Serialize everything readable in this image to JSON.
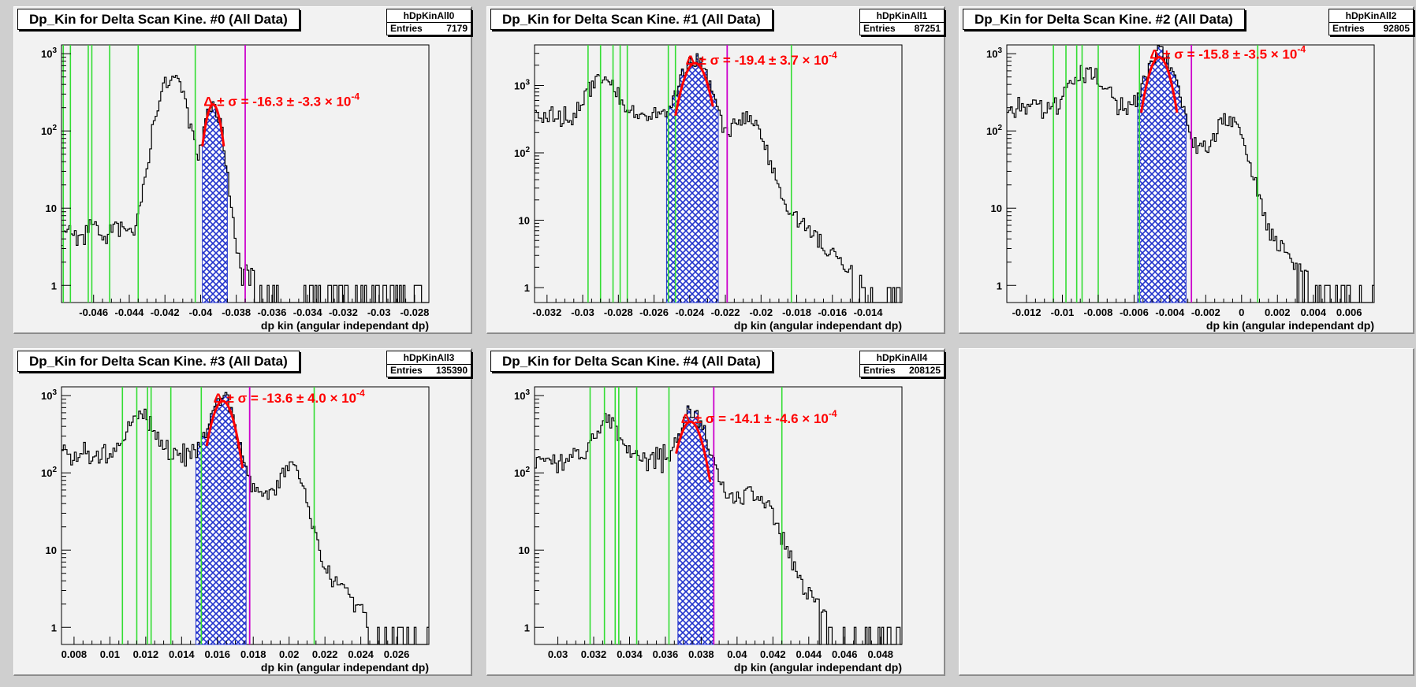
{
  "colors": {
    "background": "#cfcfcf",
    "pad": "#f2f2f2",
    "histogram_line": "#000000",
    "fill": "#2233cc",
    "fit": "#ff0000",
    "cut_lines": "#33dd33",
    "marker_line": "#cc00cc"
  },
  "chart_data": [
    {
      "type": "histogram",
      "title": "Dp_Kin for Delta Scan Kine. #0 (All Data)",
      "hist_name": "hDpKinAll0",
      "entries_label": "Entries",
      "entries": "7179",
      "xlabel": "dp kin (angular independant dp)",
      "ylabel": "",
      "yscale": "log",
      "xlim": [
        -0.0478,
        -0.0272
      ],
      "ylim": [
        0.6,
        1300
      ],
      "xticks": [
        -0.046,
        -0.044,
        -0.042,
        -0.04,
        -0.038,
        -0.036,
        -0.034,
        -0.032,
        -0.03,
        -0.028
      ],
      "xtick_labels": [
        "-0.046",
        "-0.044",
        "-0.042",
        "-0.04",
        "-0.038",
        "-0.036",
        "-0.034",
        "-0.032",
        "-0.03",
        "-0.028"
      ],
      "yticks": [
        1,
        10,
        100,
        1000
      ],
      "ytick_labels": [
        "1",
        "10",
        "10²",
        "10³"
      ],
      "peaks": [
        {
          "x": -0.0416,
          "sigma": 0.0006,
          "height": 500
        },
        {
          "x": -0.0393,
          "sigma": 0.0004,
          "height": 200
        }
      ],
      "background_level": 5,
      "tail_level": 1,
      "fit": {
        "center": -0.0393,
        "sigma": 0.00038,
        "height": 220,
        "x_range": [
          -0.0399,
          -0.0387
        ],
        "label": "Δ ± σ = -16.3 ± -3.3 × 10",
        "exp": "-4"
      },
      "filled_range": [
        -0.0399,
        -0.0385
      ],
      "cut_lines_x": [
        -0.0477,
        -0.0473,
        -0.0463,
        -0.0461,
        -0.0451,
        -0.0435,
        -0.0403
      ],
      "marker_x": -0.0375
    },
    {
      "type": "histogram",
      "title": "Dp_Kin for Delta Scan Kine. #1 (All Data)",
      "hist_name": "hDpKinAll1",
      "entries_label": "Entries",
      "entries": "87251",
      "xlabel": "dp kin (angular independant dp)",
      "ylabel": "",
      "yscale": "log",
      "xlim": [
        -0.0327,
        -0.0121
      ],
      "ylim": [
        0.6,
        4000
      ],
      "xticks": [
        -0.032,
        -0.03,
        -0.028,
        -0.026,
        -0.024,
        -0.022,
        -0.02,
        -0.018,
        -0.016,
        -0.014
      ],
      "xtick_labels": [
        "-0.032",
        "-0.03",
        "-0.028",
        "-0.026",
        "-0.024",
        "-0.022",
        "-0.02",
        "-0.018",
        "-0.016",
        "-0.014"
      ],
      "yticks": [
        1,
        10,
        100,
        1000
      ],
      "ytick_labels": [
        "1",
        "10",
        "10²",
        "10³"
      ],
      "peaks": [
        {
          "x": -0.0289,
          "sigma": 0.0007,
          "height": 900
        },
        {
          "x": -0.0237,
          "sigma": 0.0006,
          "height": 2100
        },
        {
          "x": -0.0208,
          "sigma": 0.0007,
          "height": 280
        }
      ],
      "background_level": 350,
      "tail_level": 1,
      "fit": {
        "center": -0.0237,
        "sigma": 0.00058,
        "height": 2150,
        "x_range": [
          -0.0248,
          -0.0227
        ],
        "label": "Δ ± σ = -19.4 ± 3.7 × 10",
        "exp": "-4"
      },
      "filled_range": [
        -0.0253,
        -0.0224
      ],
      "cut_lines_x": [
        -0.0297,
        -0.029,
        -0.0283,
        -0.0279,
        -0.0275,
        -0.0252,
        -0.0248
      ],
      "marker_x": -0.0219,
      "marker_x2": -0.0183
    },
    {
      "type": "histogram",
      "title": "Dp_Kin for Delta Scan Kine. #2 (All Data)",
      "hist_name": "hDpKinAll2",
      "entries_label": "Entries",
      "entries": "92805",
      "xlabel": "dp kin (angular independant dp)",
      "ylabel": "",
      "yscale": "log",
      "xlim": [
        -0.0131,
        0.0074
      ],
      "ylim": [
        0.6,
        1300
      ],
      "xticks": [
        -0.012,
        -0.01,
        -0.008,
        -0.006,
        -0.004,
        -0.002,
        0,
        0.002,
        0.004,
        0.006
      ],
      "xtick_labels": [
        "-0.012",
        "-0.01",
        "-0.008",
        "-0.006",
        "-0.004",
        "-0.002",
        "0",
        "0.002",
        "0.004",
        "0.006"
      ],
      "yticks": [
        1,
        10,
        100,
        1000
      ],
      "ytick_labels": [
        "1",
        "10",
        "10²",
        "10³"
      ],
      "peaks": [
        {
          "x": -0.0086,
          "sigma": 0.0007,
          "height": 400
        },
        {
          "x": -0.0045,
          "sigma": 0.0006,
          "height": 850
        },
        {
          "x": -0.0007,
          "sigma": 0.0007,
          "height": 120
        }
      ],
      "background_level": 200,
      "tail_level": 1,
      "fit": {
        "center": -0.0046,
        "sigma": 0.00055,
        "height": 900,
        "x_range": [
          -0.0056,
          -0.0036
        ],
        "label": "Δ ± σ = -15.8 ± -3.5 × 10",
        "exp": "-4"
      },
      "filled_range": [
        -0.0058,
        -0.0031
      ],
      "cut_lines_x": [
        -0.0105,
        -0.0098,
        -0.0092,
        -0.0089,
        -0.008,
        -0.0057
      ],
      "marker_x": -0.0028,
      "marker_x2": 0.0009
    },
    {
      "type": "histogram",
      "title": "Dp_Kin for Delta Scan Kine. #3 (All Data)",
      "hist_name": "hDpKinAll3",
      "entries_label": "Entries",
      "entries": "135390",
      "xlabel": "dp kin (angular independant dp)",
      "ylabel": "",
      "yscale": "log",
      "xlim": [
        0.0073,
        0.0278
      ],
      "ylim": [
        0.6,
        1300
      ],
      "xticks": [
        0.008,
        0.01,
        0.012,
        0.014,
        0.016,
        0.018,
        0.02,
        0.022,
        0.024,
        0.026
      ],
      "xtick_labels": [
        "0.008",
        "0.01",
        "0.012",
        "0.014",
        "0.016",
        "0.018",
        "0.02",
        "0.022",
        "0.024",
        "0.026"
      ],
      "yticks": [
        1,
        10,
        100,
        1000
      ],
      "ytick_labels": [
        "1",
        "10",
        "10²",
        "10³"
      ],
      "peaks": [
        {
          "x": 0.0117,
          "sigma": 0.0006,
          "height": 400
        },
        {
          "x": 0.0163,
          "sigma": 0.0005,
          "height": 800
        },
        {
          "x": 0.0201,
          "sigma": 0.0006,
          "height": 100
        }
      ],
      "background_level": 180,
      "tail_level": 1,
      "fit": {
        "center": 0.0163,
        "sigma": 0.00055,
        "height": 850,
        "x_range": [
          0.0154,
          0.0174
        ],
        "label": "Δ ± σ = -13.6 ± 4.0 × 10",
        "exp": "-4"
      },
      "filled_range": [
        0.0148,
        0.0176
      ],
      "cut_lines_x": [
        0.0107,
        0.0115,
        0.0121,
        0.0123,
        0.0134,
        0.0151
      ],
      "marker_x": 0.0178,
      "marker_x2": 0.0214
    },
    {
      "type": "histogram",
      "title": "Dp_Kin for Delta Scan Kine. #4 (All Data)",
      "hist_name": "hDpKinAll4",
      "entries_label": "Entries",
      "entries": "208125",
      "xlabel": "dp kin (angular independant dp)",
      "ylabel": "",
      "yscale": "log",
      "xlim": [
        0.0287,
        0.0492
      ],
      "ylim": [
        0.6,
        1300
      ],
      "xticks": [
        0.03,
        0.032,
        0.034,
        0.036,
        0.038,
        0.04,
        0.042,
        0.044,
        0.046,
        0.048
      ],
      "xtick_labels": [
        "0.03",
        "0.032",
        "0.034",
        "0.036",
        "0.038",
        "0.04",
        "0.042",
        "0.044",
        "0.046",
        "0.048"
      ],
      "yticks": [
        1,
        10,
        100,
        1000
      ],
      "ytick_labels": [
        "1",
        "10",
        "10²",
        "10³"
      ],
      "peaks": [
        {
          "x": 0.0328,
          "sigma": 0.0006,
          "height": 350
        },
        {
          "x": 0.0375,
          "sigma": 0.0006,
          "height": 450
        },
        {
          "x": 0.041,
          "sigma": 0.0009,
          "height": 35
        }
      ],
      "background_level": 150,
      "tail_level": 1,
      "fit": {
        "center": 0.0374,
        "sigma": 0.00058,
        "height": 460,
        "x_range": [
          0.0366,
          0.0385
        ],
        "label": "Δ ± σ = -14.1 ± -4.6 × 10",
        "exp": "-4"
      },
      "filled_range": [
        0.0367,
        0.0387
      ],
      "cut_lines_x": [
        0.0318,
        0.0326,
        0.0332,
        0.0334,
        0.0344,
        0.0362
      ],
      "marker_x": 0.0387,
      "marker_x2": 0.0425
    }
  ]
}
